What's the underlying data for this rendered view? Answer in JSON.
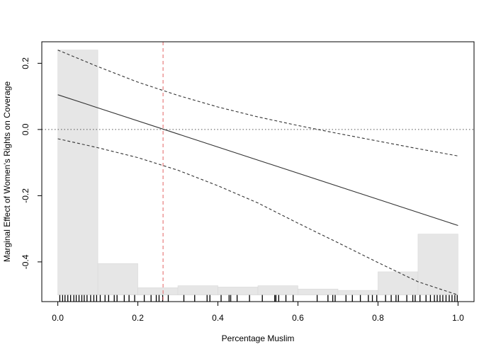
{
  "chart_data": {
    "type": "line",
    "title": "",
    "xlabel": "Percentage Muslim",
    "ylabel": "Marginal Effect of Women's Rights on Coverage",
    "xlim": [
      -0.04,
      1.04
    ],
    "ylim": [
      -0.52,
      0.265
    ],
    "x_ticks": [
      0.0,
      0.2,
      0.4,
      0.6,
      0.8,
      1.0
    ],
    "x_tick_labels": [
      "0.0",
      "0.2",
      "0.4",
      "0.6",
      "0.8",
      "1.0"
    ],
    "y_ticks": [
      -0.4,
      -0.2,
      0.0,
      0.2
    ],
    "y_tick_labels": [
      "-0.4",
      "-0.2",
      "0.0",
      "0.2"
    ],
    "grid": false,
    "legend": "none",
    "series": [
      {
        "style": "solid",
        "x": [
          0.0,
          1.0
        ],
        "y": [
          0.105,
          -0.29
        ]
      },
      {
        "style": "dashed",
        "x": [
          0.0,
          0.1,
          0.2,
          0.3,
          0.4,
          0.5,
          0.6,
          0.7,
          0.8,
          0.9,
          1.0
        ],
        "y": [
          0.24,
          0.19,
          0.143,
          0.103,
          0.068,
          0.038,
          0.012,
          -0.012,
          -0.035,
          -0.058,
          -0.08
        ]
      },
      {
        "style": "dashed",
        "x": [
          0.0,
          0.1,
          0.2,
          0.3,
          0.4,
          0.5,
          0.6,
          0.7,
          0.8,
          0.9,
          1.0
        ],
        "y": [
          -0.028,
          -0.055,
          -0.085,
          -0.123,
          -0.17,
          -0.222,
          -0.283,
          -0.342,
          -0.402,
          -0.46,
          -0.5
        ]
      }
    ],
    "histogram": {
      "bin_edges": [
        0.0,
        0.1,
        0.2,
        0.3,
        0.4,
        0.5,
        0.6,
        0.7,
        0.8,
        0.9,
        1.0
      ],
      "top_values": [
        0.24,
        -0.405,
        -0.478,
        -0.472,
        -0.476,
        -0.472,
        -0.482,
        -0.486,
        -0.43,
        -0.316
      ],
      "base": -0.5,
      "color": "#e6e6e6"
    },
    "reference_lines": [
      {
        "axis": "y",
        "value": 0.0,
        "style": "dotted",
        "color": "#555555"
      },
      {
        "axis": "x",
        "value": 0.263,
        "style": "dashed",
        "color": "#e87d7d"
      }
    ],
    "rug": [
      0.005,
      0.012,
      0.018,
      0.025,
      0.032,
      0.04,
      0.046,
      0.053,
      0.06,
      0.066,
      0.073,
      0.082,
      0.09,
      0.097,
      0.106,
      0.118,
      0.127,
      0.141,
      0.148,
      0.166,
      0.178,
      0.192,
      0.216,
      0.233,
      0.246,
      0.253,
      0.262,
      0.276,
      0.315,
      0.342,
      0.373,
      0.38,
      0.408,
      0.428,
      0.432,
      0.448,
      0.479,
      0.511,
      0.542,
      0.545,
      0.552,
      0.57,
      0.588,
      0.648,
      0.675,
      0.687,
      0.693,
      0.72,
      0.736,
      0.756,
      0.776,
      0.786,
      0.797,
      0.819,
      0.833,
      0.845,
      0.851,
      0.872,
      0.887,
      0.893,
      0.905,
      0.92,
      0.931,
      0.941,
      0.948,
      0.955,
      0.962,
      0.97,
      0.978,
      0.985,
      0.992,
      0.998
    ]
  }
}
